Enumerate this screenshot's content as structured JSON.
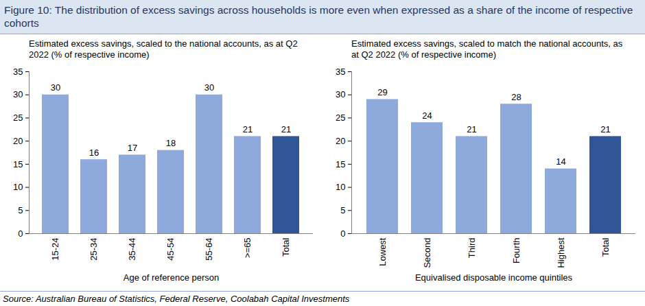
{
  "title": "Figure 10: The distribution of excess savings across households is more even when expressed as a share of the income of respective cohorts",
  "source": "Source: Australian Bureau of Statistics, Federal Reserve, Coolabah Capital Investments",
  "chart_data": [
    {
      "type": "bar",
      "subtitle": "Estimated excess savings, scaled to the national accounts, as at Q2 2022 (% of respective income)",
      "x_label": "Age of reference person",
      "categories": [
        "15-24",
        "25-34",
        "35-44",
        "45-54",
        "55-64",
        ">=65",
        "Total"
      ],
      "values": [
        30,
        16,
        17,
        18,
        30,
        21,
        21
      ],
      "colors": [
        "#8eaadc",
        "#8eaadc",
        "#8eaadc",
        "#8eaadc",
        "#8eaadc",
        "#8eaadc",
        "#2f5597"
      ],
      "ylim": [
        0,
        35
      ],
      "yticks": [
        0,
        5,
        10,
        15,
        20,
        25,
        30,
        35
      ],
      "grid": false,
      "data_labels": true
    },
    {
      "type": "bar",
      "subtitle": "Estimated excess savings, scaled to match the national accounts, as at Q2 2022 (% of respective income)",
      "x_label": "Equivalised disposable income quintiles",
      "categories": [
        "Lowest",
        "Second",
        "Third",
        "Fourth",
        "Highest",
        "Total"
      ],
      "values": [
        29,
        24,
        21,
        28,
        14,
        21
      ],
      "colors": [
        "#8eaadc",
        "#8eaadc",
        "#8eaadc",
        "#8eaadc",
        "#8eaadc",
        "#2f5597"
      ],
      "ylim": [
        0,
        35
      ],
      "yticks": [
        0,
        5,
        10,
        15,
        20,
        25,
        30,
        35
      ],
      "grid": false,
      "data_labels": true
    }
  ]
}
